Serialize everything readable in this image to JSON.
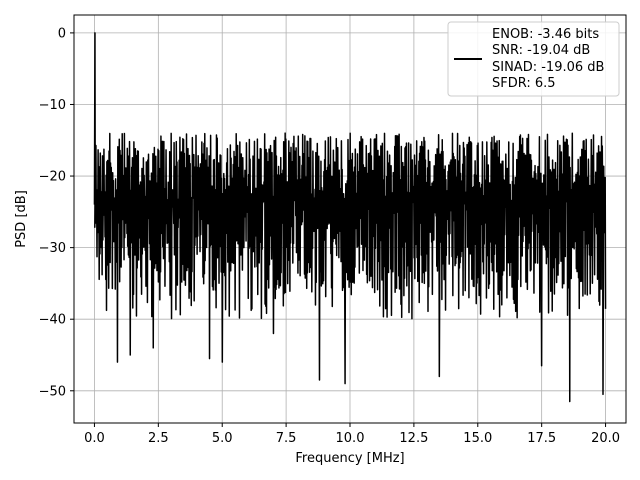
{
  "chart_data": {
    "type": "line",
    "xlabel": "Frequency [MHz]",
    "ylabel": "PSD [dB]",
    "xlim": [
      -0.8,
      20.8
    ],
    "ylim": [
      -54.5,
      2.5
    ],
    "xticks": [
      0.0,
      2.5,
      5.0,
      7.5,
      10.0,
      12.5,
      15.0,
      17.5,
      20.0
    ],
    "xtick_labels": [
      "0.0",
      "2.5",
      "5.0",
      "7.5",
      "10.0",
      "12.5",
      "15.0",
      "17.5",
      "20.0"
    ],
    "yticks": [
      0,
      -10,
      -20,
      -30,
      -40,
      -50
    ],
    "ytick_labels": [
      "0",
      "−10",
      "−20",
      "−30",
      "−40",
      "−50"
    ],
    "grid": true,
    "legend": {
      "placement": "upper-right",
      "entries": [
        "ENOB: -3.46 bits",
        "SNR: -19.04 dB",
        "SINAD: -19.06 dB",
        "SFDR: 6.5"
      ]
    },
    "series": [
      {
        "color": "#000000",
        "x_range": [
          0.0,
          20.0
        ],
        "noise_floor_db": [
          -36,
          -14
        ],
        "peak": {
          "x": 0.02,
          "y": 0.0
        },
        "deep_minima": [
          {
            "x": 0.9,
            "y": -46
          },
          {
            "x": 1.4,
            "y": -45
          },
          {
            "x": 2.3,
            "y": -44
          },
          {
            "x": 4.5,
            "y": -45.5
          },
          {
            "x": 5.0,
            "y": -46
          },
          {
            "x": 7.0,
            "y": -42
          },
          {
            "x": 8.8,
            "y": -48.5
          },
          {
            "x": 9.8,
            "y": -49
          },
          {
            "x": 13.5,
            "y": -48
          },
          {
            "x": 17.5,
            "y": -46.5
          },
          {
            "x": 18.6,
            "y": -51.5
          },
          {
            "x": 19.9,
            "y": -50.5
          }
        ]
      }
    ]
  }
}
